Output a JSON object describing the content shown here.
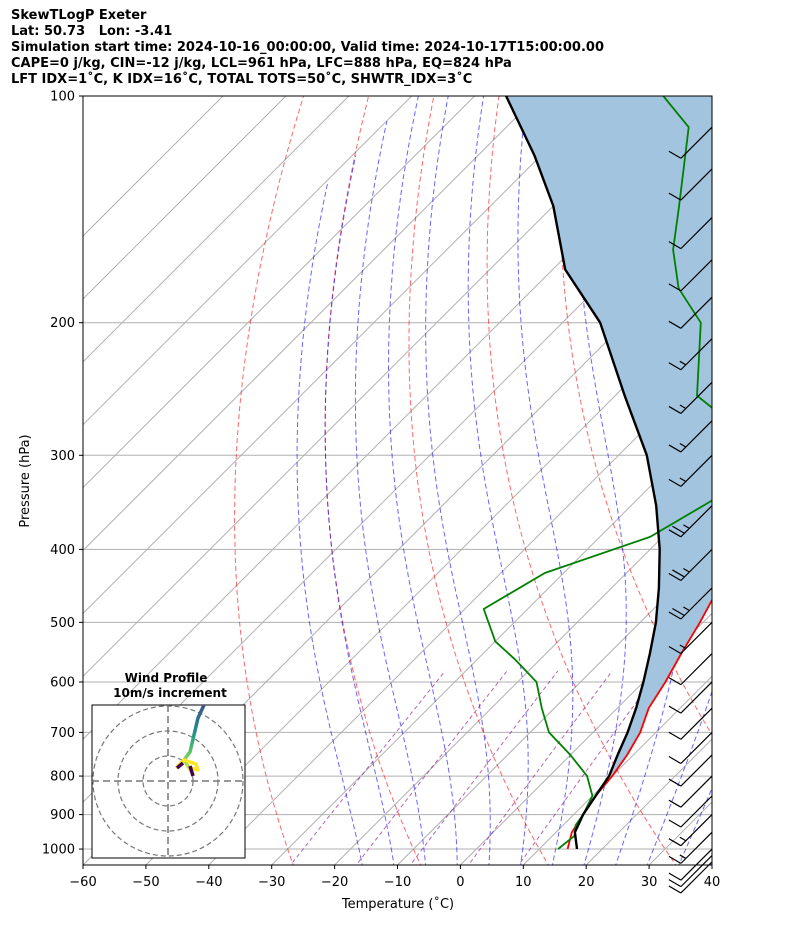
{
  "header": {
    "line1": "SkewTLogP Exeter",
    "line2": "Lat: 50.73   Lon: -3.41",
    "line3": "Simulation start time: 2024-10-16_00:00:00, Valid time: 2024-10-17T15:00:00.00",
    "line4": "CAPE=0 j/kg, CIN=-12 j/kg, LCL=961 hPa, LFC=888 hPa, EQ=824 hPa",
    "line5": "LFT IDX=1˚C, K IDX=16˚C, TOTAL TOTS=50˚C, SHWTR_IDX=3˚C"
  },
  "chart_data": {
    "type": "line",
    "subtype": "skew-t log-p",
    "xlabel": "Temperature (˚C)",
    "ylabel": "Pressure (hPa)",
    "xlim": [
      -60,
      40
    ],
    "ylim": [
      1050,
      100
    ],
    "yscale": "log",
    "x_ticks": [
      "−60",
      "−50",
      "−40",
      "−30",
      "−20",
      "−10",
      "0",
      "10",
      "20",
      "30",
      "40"
    ],
    "y_ticks": [
      "100",
      "200",
      "300",
      "400",
      "500",
      "600",
      "700",
      "800",
      "900",
      "1000"
    ],
    "grid": true,
    "series": [
      {
        "color": "#ff0000",
        "points": [
          [
            14.5,
            1000
          ],
          [
            12.5,
            950
          ],
          [
            11.5,
            900
          ],
          [
            10.5,
            850
          ],
          [
            10,
            800
          ],
          [
            9,
            750
          ],
          [
            7.5,
            700
          ],
          [
            5,
            650
          ],
          [
            3.5,
            600
          ],
          [
            1.5,
            550
          ],
          [
            -0.5,
            500
          ],
          [
            -3,
            450
          ],
          [
            -4,
            400
          ],
          [
            -8.5,
            350
          ],
          [
            -15,
            300
          ],
          [
            -17.5,
            280
          ],
          [
            -22,
            250
          ],
          [
            -30,
            200
          ],
          [
            -38,
            170
          ],
          [
            -49,
            140
          ],
          [
            -57,
            120
          ],
          [
            -65,
            100
          ]
        ]
      },
      {
        "color": "#008000",
        "points": [
          [
            13,
            1000
          ],
          [
            13.5,
            960
          ],
          [
            12,
            930
          ],
          [
            11.5,
            900
          ],
          [
            10,
            850
          ],
          [
            6,
            800
          ],
          [
            0,
            750
          ],
          [
            -7,
            700
          ],
          [
            -12,
            650
          ],
          [
            -17,
            600
          ],
          [
            -24,
            560
          ],
          [
            -30,
            530
          ],
          [
            -37,
            480
          ],
          [
            -33,
            430
          ],
          [
            -22,
            385
          ],
          [
            -18,
            345
          ],
          [
            -15,
            310
          ],
          [
            -19,
            290
          ],
          [
            -28,
            270
          ],
          [
            -37,
            250
          ],
          [
            -48,
            200
          ],
          [
            -57,
            180
          ],
          [
            -64,
            160
          ],
          [
            -70,
            140
          ],
          [
            -81,
            110
          ],
          [
            -90,
            100
          ]
        ]
      },
      {
        "color": "#000000",
        "points": [
          [
            16,
            1000
          ],
          [
            13,
            950
          ],
          [
            11.5,
            900
          ],
          [
            10.5,
            850
          ],
          [
            9.5,
            800
          ],
          [
            7.5,
            750
          ],
          [
            5.5,
            700
          ],
          [
            3,
            650
          ],
          [
            0,
            600
          ],
          [
            -3.5,
            550
          ],
          [
            -7.5,
            500
          ],
          [
            -12.5,
            450
          ],
          [
            -18.5,
            400
          ],
          [
            -26,
            350
          ],
          [
            -35.5,
            300
          ],
          [
            -48.5,
            250
          ],
          [
            -64,
            200
          ],
          [
            -78,
            170
          ],
          [
            -90,
            140
          ],
          [
            -101,
            120
          ],
          [
            -115,
            100
          ]
        ]
      }
    ],
    "filled_region": {
      "color": "#a2c4de",
      "between": [
        "red parcel",
        "black parcel"
      ],
      "from_hpa": 800,
      "to_hpa": 100
    },
    "dry_adiabats": {
      "color": "#ff0000",
      "style": "dashed"
    },
    "moist_adiabats": {
      "color": "#0000ff",
      "style": "dashed"
    },
    "mixing_ratio": {
      "color": "#800080",
      "style": "dashed"
    },
    "wind_barbs": [
      {
        "hpa": 1040,
        "speed_ms": 12
      },
      {
        "hpa": 1020,
        "speed_ms": 12
      },
      {
        "hpa": 1000,
        "speed_ms": 12
      },
      {
        "hpa": 950,
        "speed_ms": 15
      },
      {
        "hpa": 900,
        "speed_ms": 15
      },
      {
        "hpa": 850,
        "speed_ms": 12
      },
      {
        "hpa": 800,
        "speed_ms": 12
      },
      {
        "hpa": 750,
        "speed_ms": 12
      },
      {
        "hpa": 700,
        "speed_ms": 12
      },
      {
        "hpa": 650,
        "speed_ms": 12
      },
      {
        "hpa": 600,
        "speed_ms": 12
      },
      {
        "hpa": 550,
        "speed_ms": 12
      },
      {
        "hpa": 500,
        "speed_ms": 15
      },
      {
        "hpa": 450,
        "speed_ms": 25
      },
      {
        "hpa": 400,
        "speed_ms": 25
      },
      {
        "hpa": 350,
        "speed_ms": 25
      },
      {
        "hpa": 300,
        "speed_ms": 15
      },
      {
        "hpa": 270,
        "speed_ms": 15
      },
      {
        "hpa": 240,
        "speed_ms": 15
      },
      {
        "hpa": 210,
        "speed_ms": 15
      },
      {
        "hpa": 185,
        "speed_ms": 12
      },
      {
        "hpa": 165,
        "speed_ms": 12
      },
      {
        "hpa": 145,
        "speed_ms": 12
      },
      {
        "hpa": 125,
        "speed_ms": 12
      },
      {
        "hpa": 110,
        "speed_ms": 12
      }
    ]
  },
  "hodograph": {
    "title": "Wind Profile",
    "subtitle": "10m/s increment",
    "rings": 3,
    "gradient_colors": [
      "#fde725",
      "#5ec962",
      "#21918c",
      "#3b528b",
      "#440154"
    ]
  }
}
